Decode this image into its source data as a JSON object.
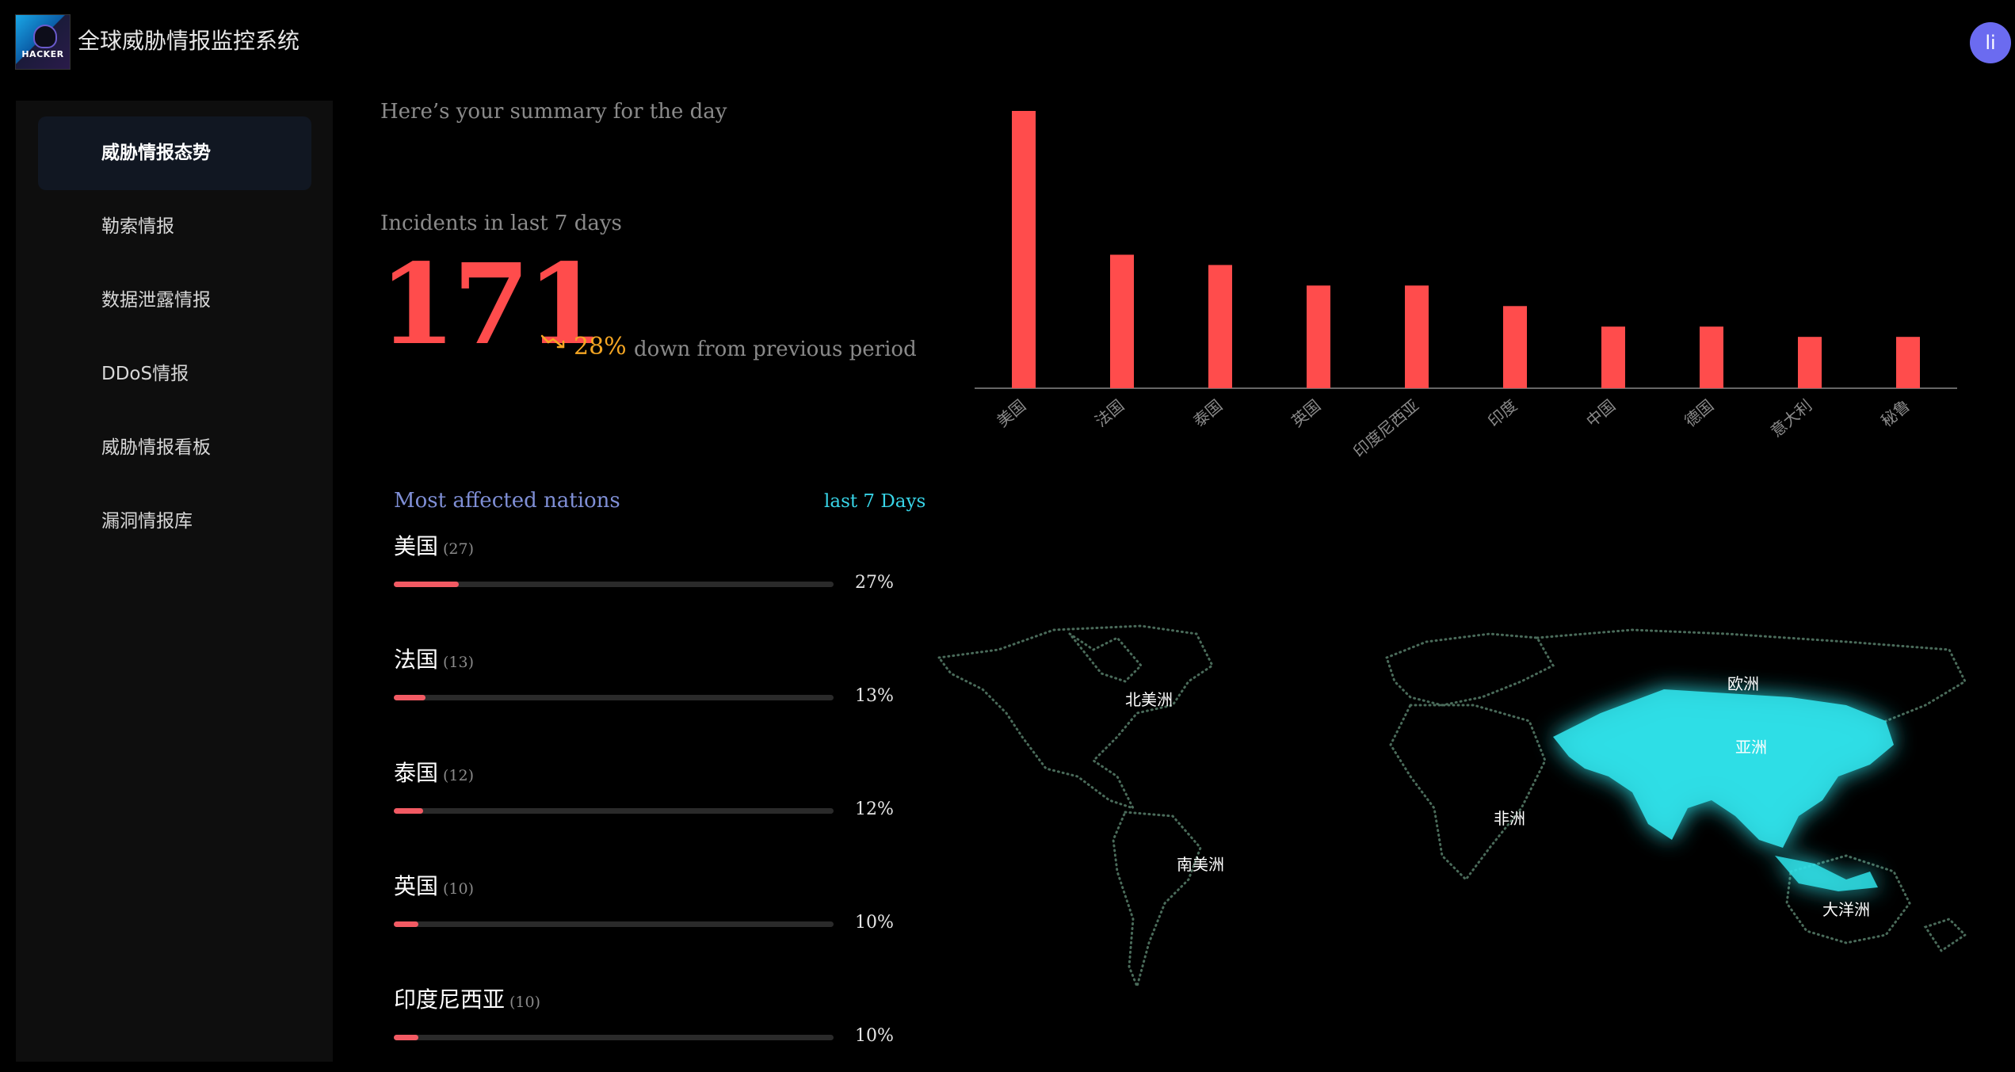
{
  "header": {
    "logo_text": "HACKER",
    "app_title": "全球威胁情报监控系统",
    "avatar_initial": "li"
  },
  "sidebar": {
    "items": [
      {
        "label": "威胁情报态势",
        "active": true
      },
      {
        "label": "勒索情报",
        "active": false
      },
      {
        "label": "数据泄露情报",
        "active": false
      },
      {
        "label": "DDoS情报",
        "active": false
      },
      {
        "label": "威胁情报看板",
        "active": false
      },
      {
        "label": "漏洞情报库",
        "active": false
      }
    ]
  },
  "summary": {
    "greeting": "Here’s your summary for the day",
    "incidents_label": "Incidents in last 7 days",
    "incidents_count": "171",
    "trend_percent": "28%",
    "trend_text": "down from previous period"
  },
  "nations": {
    "title": "Most affected nations",
    "range": "last 7 Days",
    "items": [
      {
        "name": "美国",
        "count": "(27)",
        "percent_label": "27%",
        "fraction": 0.27
      },
      {
        "name": "法国",
        "count": "(13)",
        "percent_label": "13%",
        "fraction": 0.13
      },
      {
        "name": "泰国",
        "count": "(12)",
        "percent_label": "12%",
        "fraction": 0.12
      },
      {
        "name": "英国",
        "count": "(10)",
        "percent_label": "10%",
        "fraction": 0.1
      },
      {
        "name": "印度尼西亚",
        "count": "(10)",
        "percent_label": "10%",
        "fraction": 0.1
      }
    ]
  },
  "chart_data": {
    "type": "bar",
    "categories": [
      "美国",
      "法国",
      "泰国",
      "英国",
      "印度尼西亚",
      "印度",
      "中国",
      "德国",
      "意大利",
      "秘鲁"
    ],
    "values": [
      27,
      13,
      12,
      10,
      10,
      8,
      6,
      6,
      5,
      5
    ],
    "ylim": [
      0,
      27
    ],
    "bar_color": "#ff4c4c",
    "grid": false
  },
  "map": {
    "continents": [
      "北美洲",
      "南美洲",
      "欧洲",
      "非洲",
      "亚洲",
      "大洋洲"
    ],
    "highlight": "亚洲",
    "highlight_color": "#2fe0e8",
    "dot_color": "#4a6b5a"
  }
}
